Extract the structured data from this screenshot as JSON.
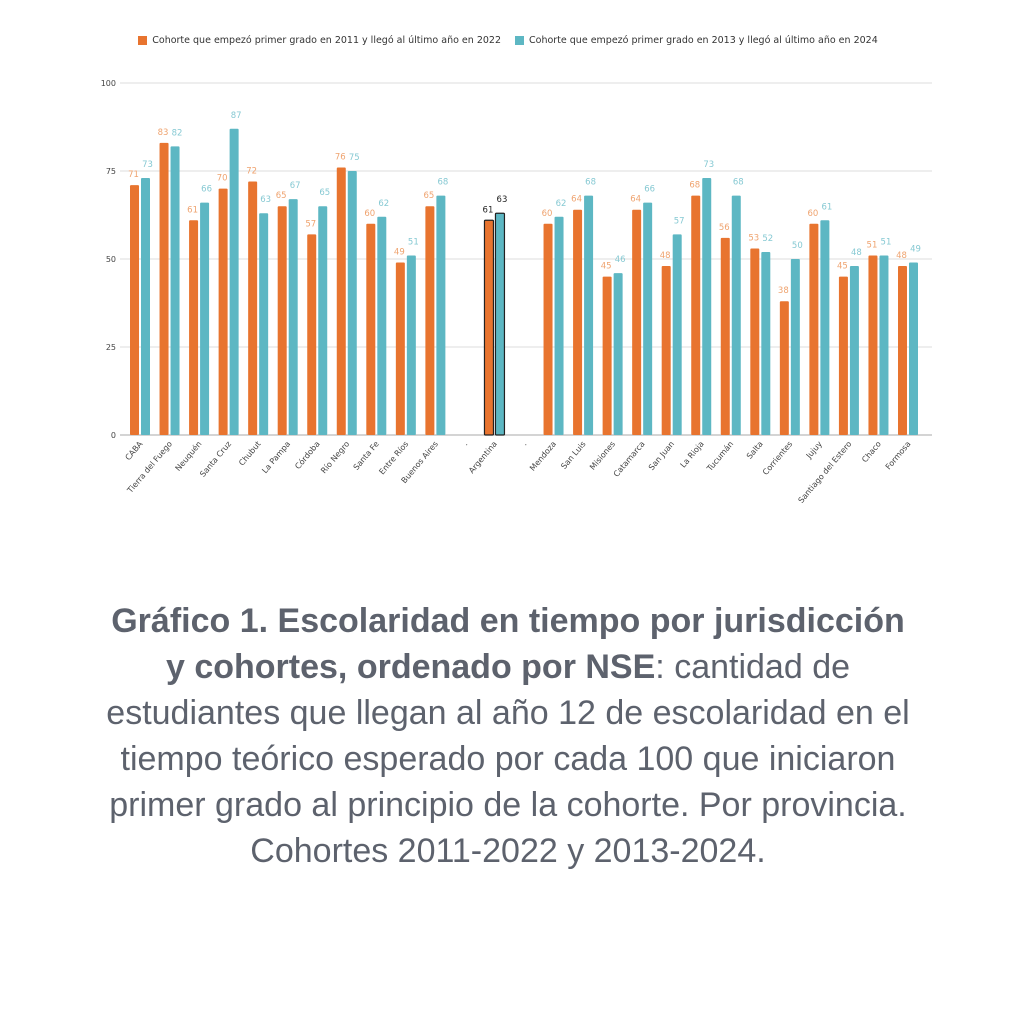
{
  "chart_data": {
    "type": "bar",
    "categories": [
      "CABA",
      "Tierra del Fuego",
      "Neuquén",
      "Santa Cruz",
      "Chubut",
      "La Pampa",
      "Córdoba",
      "Río Negro",
      "Santa Fe",
      "Entre Ríos",
      "Buenos Aires",
      ".",
      "Argentina",
      ".",
      "Mendoza",
      "San Luis",
      "Misiones",
      "Catamarca",
      "San Juan",
      "La Rioja",
      "Tucumán",
      "Salta",
      "Corrientes",
      "Jujuy",
      "Santiago del Estero",
      "Chaco",
      "Formosa"
    ],
    "series": [
      {
        "name": "Cohorte que empezó primer grado en 2011 y llegó al último año en 2022",
        "color": "#E8742F",
        "label_color": "#EFA36F",
        "values": [
          71,
          83,
          61,
          70,
          72,
          65,
          57,
          76,
          60,
          49,
          65,
          null,
          61,
          null,
          60,
          64,
          45,
          64,
          48,
          68,
          56,
          53,
          38,
          60,
          45,
          51,
          48
        ]
      },
      {
        "name": "Cohorte que empezó primer grado en 2013 y llegó al último año en 2024",
        "color": "#5DB7C3",
        "label_color": "#86C9D3",
        "values": [
          73,
          82,
          66,
          87,
          63,
          67,
          65,
          75,
          62,
          51,
          68,
          null,
          63,
          null,
          62,
          68,
          46,
          66,
          57,
          73,
          68,
          52,
          50,
          61,
          48,
          51,
          49
        ]
      }
    ],
    "highlight_category": "Argentina",
    "yticks": [
      0,
      25,
      50,
      75,
      100
    ],
    "ylim": [
      0,
      100
    ],
    "grid": true,
    "legend": "top",
    "title": "",
    "xlabel": "",
    "ylabel": ""
  },
  "caption": {
    "bold": "Gráfico 1. Escolaridad en tiempo por jurisdicción y cohortes, ordenado por NSE",
    "colon": ":",
    "text": " cantidad de estudiantes que llegan al año 12 de escolaridad en el tiempo teórico esperado por cada 100 que iniciaron primer grado al principio de la cohorte. Por provincia. Cohortes 2011-2022 y 2013-2024."
  }
}
